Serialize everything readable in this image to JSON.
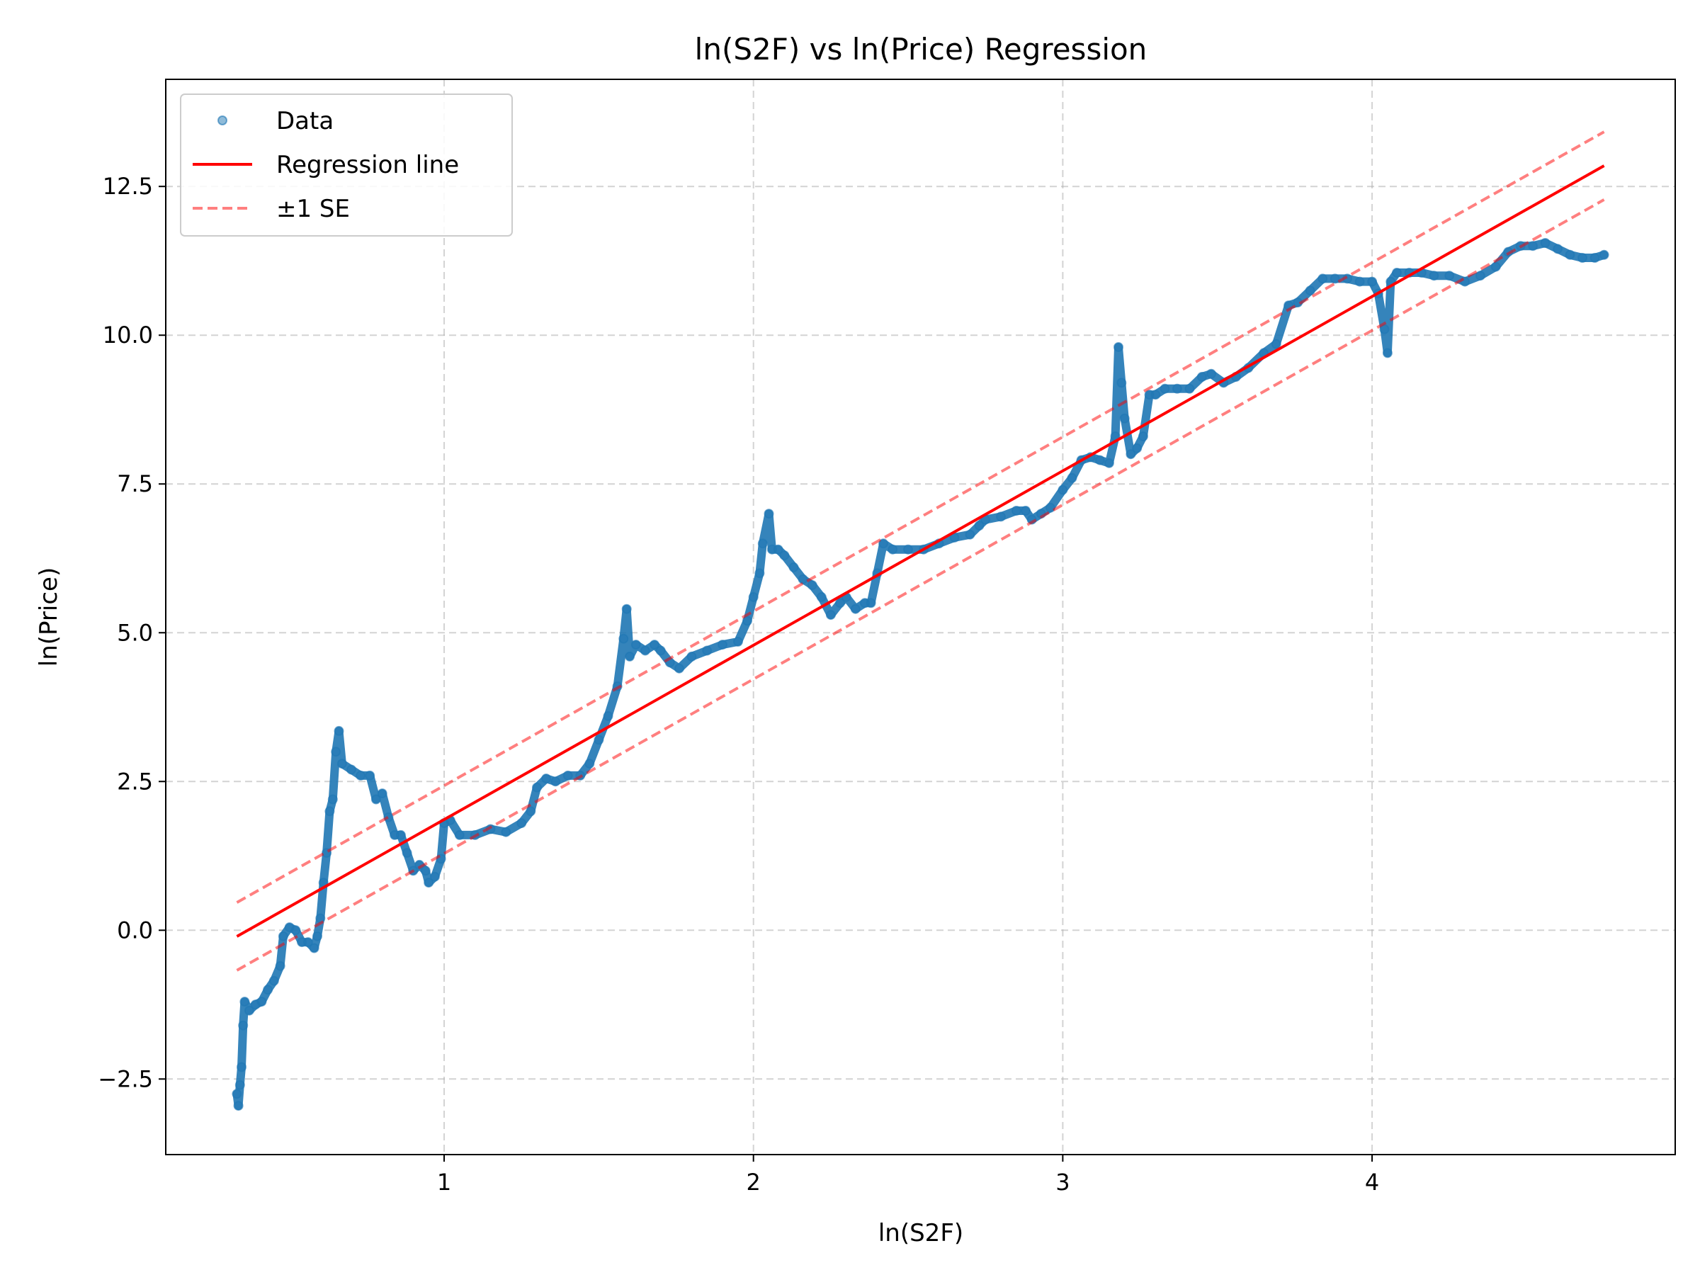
{
  "chart_data": {
    "type": "scatter",
    "title": "ln(S2F) vs ln(Price) Regression",
    "xlabel": "ln(S2F)",
    "ylabel": "ln(Price)",
    "xlim": [
      0.1,
      4.98
    ],
    "ylim": [
      -3.77,
      14.3
    ],
    "xticks": [
      1,
      2,
      3,
      4
    ],
    "yticks": [
      -2.5,
      0.0,
      2.5,
      5.0,
      7.5,
      10.0,
      12.5
    ],
    "xtick_labels": [
      "1",
      "2",
      "3",
      "4"
    ],
    "ytick_labels": [
      "−2.5",
      "0.0",
      "2.5",
      "5.0",
      "7.5",
      "10.0",
      "12.5"
    ],
    "grid": true,
    "legend_position": "top-left",
    "legend": [
      "Data",
      "Regression line",
      "±1 SE"
    ],
    "colors": {
      "data": "#1f77b4",
      "regression": "#ff0000",
      "se": "#ff7f7f"
    },
    "regression": {
      "x_start": 0.33,
      "x_end": 4.75,
      "intercept": -1.07,
      "slope": 2.93,
      "se": 0.57
    },
    "series": [
      {
        "name": "Data",
        "points": [
          [
            0.33,
            -2.75
          ],
          [
            0.335,
            -2.95
          ],
          [
            0.34,
            -2.6
          ],
          [
            0.345,
            -2.3
          ],
          [
            0.35,
            -1.6
          ],
          [
            0.355,
            -1.2
          ],
          [
            0.37,
            -1.35
          ],
          [
            0.39,
            -1.25
          ],
          [
            0.41,
            -1.2
          ],
          [
            0.43,
            -1.0
          ],
          [
            0.45,
            -0.85
          ],
          [
            0.47,
            -0.6
          ],
          [
            0.48,
            -0.1
          ],
          [
            0.5,
            0.05
          ],
          [
            0.52,
            0.0
          ],
          [
            0.54,
            -0.2
          ],
          [
            0.56,
            -0.2
          ],
          [
            0.58,
            -0.3
          ],
          [
            0.59,
            -0.1
          ],
          [
            0.6,
            0.2
          ],
          [
            0.61,
            0.8
          ],
          [
            0.62,
            1.3
          ],
          [
            0.63,
            2.0
          ],
          [
            0.64,
            2.2
          ],
          [
            0.65,
            3.0
          ],
          [
            0.66,
            3.35
          ],
          [
            0.67,
            2.8
          ],
          [
            0.7,
            2.7
          ],
          [
            0.73,
            2.6
          ],
          [
            0.76,
            2.6
          ],
          [
            0.78,
            2.2
          ],
          [
            0.8,
            2.3
          ],
          [
            0.82,
            1.9
          ],
          [
            0.84,
            1.6
          ],
          [
            0.86,
            1.6
          ],
          [
            0.88,
            1.3
          ],
          [
            0.9,
            1.0
          ],
          [
            0.92,
            1.1
          ],
          [
            0.94,
            1.0
          ],
          [
            0.95,
            0.8
          ],
          [
            0.97,
            0.9
          ],
          [
            0.99,
            1.2
          ],
          [
            1.0,
            1.8
          ],
          [
            1.02,
            1.85
          ],
          [
            1.05,
            1.6
          ],
          [
            1.1,
            1.6
          ],
          [
            1.15,
            1.7
          ],
          [
            1.2,
            1.65
          ],
          [
            1.25,
            1.8
          ],
          [
            1.28,
            2.0
          ],
          [
            1.3,
            2.4
          ],
          [
            1.33,
            2.55
          ],
          [
            1.36,
            2.5
          ],
          [
            1.4,
            2.6
          ],
          [
            1.44,
            2.6
          ],
          [
            1.47,
            2.8
          ],
          [
            1.5,
            3.2
          ],
          [
            1.53,
            3.6
          ],
          [
            1.56,
            4.1
          ],
          [
            1.58,
            4.9
          ],
          [
            1.59,
            5.4
          ],
          [
            1.6,
            4.6
          ],
          [
            1.62,
            4.8
          ],
          [
            1.65,
            4.7
          ],
          [
            1.68,
            4.8
          ],
          [
            1.7,
            4.7
          ],
          [
            1.73,
            4.5
          ],
          [
            1.76,
            4.4
          ],
          [
            1.8,
            4.6
          ],
          [
            1.85,
            4.7
          ],
          [
            1.9,
            4.8
          ],
          [
            1.95,
            4.85
          ],
          [
            1.98,
            5.2
          ],
          [
            2.0,
            5.6
          ],
          [
            2.02,
            6.0
          ],
          [
            2.03,
            6.5
          ],
          [
            2.05,
            7.0
          ],
          [
            2.06,
            6.4
          ],
          [
            2.08,
            6.4
          ],
          [
            2.1,
            6.3
          ],
          [
            2.13,
            6.1
          ],
          [
            2.16,
            5.9
          ],
          [
            2.19,
            5.8
          ],
          [
            2.22,
            5.6
          ],
          [
            2.25,
            5.3
          ],
          [
            2.28,
            5.5
          ],
          [
            2.3,
            5.6
          ],
          [
            2.33,
            5.4
          ],
          [
            2.36,
            5.5
          ],
          [
            2.38,
            5.5
          ],
          [
            2.4,
            6.0
          ],
          [
            2.42,
            6.5
          ],
          [
            2.45,
            6.4
          ],
          [
            2.5,
            6.4
          ],
          [
            2.55,
            6.4
          ],
          [
            2.6,
            6.5
          ],
          [
            2.65,
            6.6
          ],
          [
            2.7,
            6.65
          ],
          [
            2.73,
            6.8
          ],
          [
            2.75,
            6.9
          ],
          [
            2.8,
            6.95
          ],
          [
            2.85,
            7.05
          ],
          [
            2.88,
            7.05
          ],
          [
            2.9,
            6.9
          ],
          [
            2.93,
            7.0
          ],
          [
            2.96,
            7.1
          ],
          [
            3.0,
            7.4
          ],
          [
            3.03,
            7.6
          ],
          [
            3.06,
            7.9
          ],
          [
            3.09,
            7.95
          ],
          [
            3.12,
            7.9
          ],
          [
            3.15,
            7.85
          ],
          [
            3.17,
            8.3
          ],
          [
            3.18,
            9.8
          ],
          [
            3.19,
            9.2
          ],
          [
            3.2,
            8.6
          ],
          [
            3.22,
            8.0
          ],
          [
            3.24,
            8.1
          ],
          [
            3.26,
            8.3
          ],
          [
            3.28,
            9.0
          ],
          [
            3.3,
            9.0
          ],
          [
            3.33,
            9.1
          ],
          [
            3.37,
            9.1
          ],
          [
            3.41,
            9.1
          ],
          [
            3.45,
            9.3
          ],
          [
            3.48,
            9.35
          ],
          [
            3.52,
            9.2
          ],
          [
            3.56,
            9.3
          ],
          [
            3.6,
            9.45
          ],
          [
            3.65,
            9.7
          ],
          [
            3.69,
            9.85
          ],
          [
            3.73,
            10.5
          ],
          [
            3.76,
            10.55
          ],
          [
            3.8,
            10.75
          ],
          [
            3.84,
            10.95
          ],
          [
            3.88,
            10.95
          ],
          [
            3.92,
            10.95
          ],
          [
            3.96,
            10.9
          ],
          [
            4.0,
            10.9
          ],
          [
            4.02,
            10.7
          ],
          [
            4.04,
            10.1
          ],
          [
            4.05,
            9.7
          ],
          [
            4.06,
            10.9
          ],
          [
            4.08,
            11.05
          ],
          [
            4.12,
            11.05
          ],
          [
            4.16,
            11.05
          ],
          [
            4.2,
            11.0
          ],
          [
            4.25,
            11.0
          ],
          [
            4.3,
            10.9
          ],
          [
            4.35,
            11.0
          ],
          [
            4.4,
            11.15
          ],
          [
            4.44,
            11.4
          ],
          [
            4.48,
            11.5
          ],
          [
            4.52,
            11.5
          ],
          [
            4.56,
            11.55
          ],
          [
            4.6,
            11.45
          ],
          [
            4.64,
            11.35
          ],
          [
            4.68,
            11.3
          ],
          [
            4.72,
            11.3
          ],
          [
            4.75,
            11.35
          ]
        ]
      }
    ]
  }
}
